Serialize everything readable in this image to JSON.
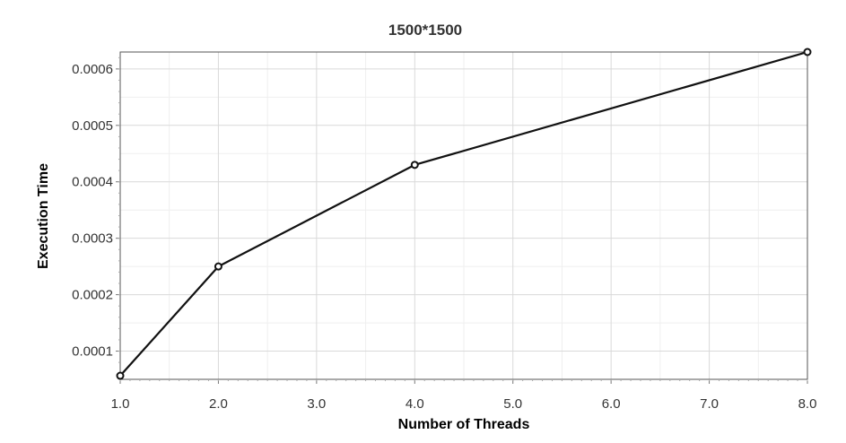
{
  "chart_data": {
    "type": "line",
    "title": "1500*1500",
    "xlabel": "Number of Threads",
    "ylabel": "Execution Time",
    "x": [
      1,
      2,
      4,
      8
    ],
    "series": [
      {
        "values": [
          5.63e-05,
          0.00025,
          0.00043,
          0.00063
        ]
      }
    ],
    "xlim": [
      1,
      8
    ],
    "ylim": [
      5e-05,
      0.00063
    ],
    "xticks": [
      1,
      2,
      3,
      4,
      5,
      6,
      7,
      8
    ],
    "xtick_labels": [
      "1.0",
      "2.0",
      "3.0",
      "4.0",
      "5.0",
      "6.0",
      "7.0",
      "8.0"
    ],
    "yticks": [
      0.0001,
      0.0002,
      0.0003,
      0.0004,
      0.0005,
      0.0006
    ],
    "ytick_labels": [
      "0.0001",
      "0.0002",
      "0.0003",
      "0.0004",
      "0.0005",
      "0.0006"
    ],
    "grid": true,
    "legend": false,
    "colors": {
      "line": "#111111",
      "grid_major": "#d9d9d9",
      "grid_minor": "#efefef",
      "frame": "#555555"
    }
  }
}
